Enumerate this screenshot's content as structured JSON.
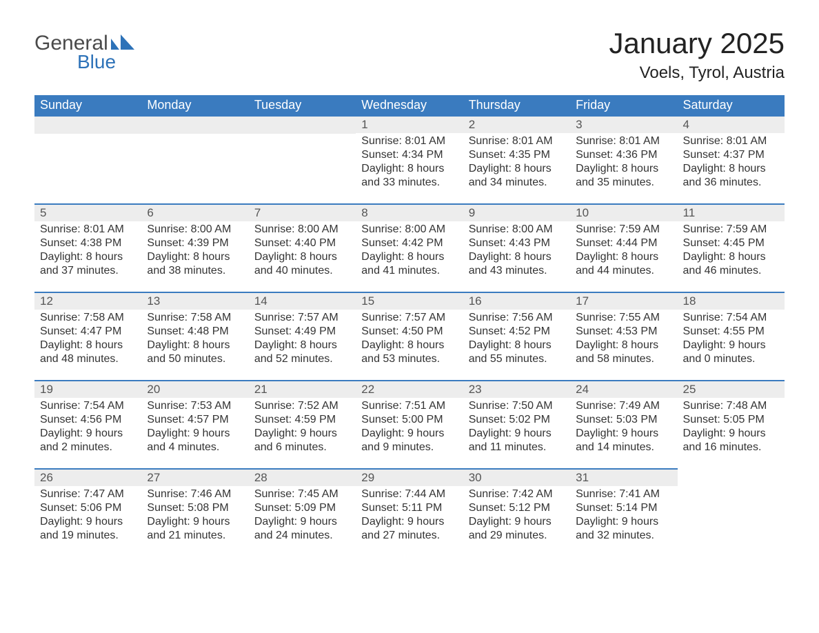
{
  "brand": {
    "text_general": "General",
    "text_blue": "Blue",
    "mark_color": "#2d72b8"
  },
  "title": "January 2025",
  "location": "Voels, Tyrol, Austria",
  "colors": {
    "header_bg": "#3a7bbf",
    "header_text": "#ffffff",
    "day_number_bg": "#ededed",
    "day_number_border": "#3a7bbf",
    "body_text": "#333333",
    "page_bg": "#ffffff"
  },
  "typography": {
    "title_fontsize": 42,
    "location_fontsize": 24,
    "header_fontsize": 18,
    "daynum_fontsize": 17,
    "body_fontsize": 16
  },
  "day_headers": [
    "Sunday",
    "Monday",
    "Tuesday",
    "Wednesday",
    "Thursday",
    "Friday",
    "Saturday"
  ],
  "weeks": [
    [
      null,
      null,
      null,
      {
        "n": "1",
        "sunrise": "Sunrise: 8:01 AM",
        "sunset": "Sunset: 4:34 PM",
        "daylight": "Daylight: 8 hours and 33 minutes."
      },
      {
        "n": "2",
        "sunrise": "Sunrise: 8:01 AM",
        "sunset": "Sunset: 4:35 PM",
        "daylight": "Daylight: 8 hours and 34 minutes."
      },
      {
        "n": "3",
        "sunrise": "Sunrise: 8:01 AM",
        "sunset": "Sunset: 4:36 PM",
        "daylight": "Daylight: 8 hours and 35 minutes."
      },
      {
        "n": "4",
        "sunrise": "Sunrise: 8:01 AM",
        "sunset": "Sunset: 4:37 PM",
        "daylight": "Daylight: 8 hours and 36 minutes."
      }
    ],
    [
      {
        "n": "5",
        "sunrise": "Sunrise: 8:01 AM",
        "sunset": "Sunset: 4:38 PM",
        "daylight": "Daylight: 8 hours and 37 minutes."
      },
      {
        "n": "6",
        "sunrise": "Sunrise: 8:00 AM",
        "sunset": "Sunset: 4:39 PM",
        "daylight": "Daylight: 8 hours and 38 minutes."
      },
      {
        "n": "7",
        "sunrise": "Sunrise: 8:00 AM",
        "sunset": "Sunset: 4:40 PM",
        "daylight": "Daylight: 8 hours and 40 minutes."
      },
      {
        "n": "8",
        "sunrise": "Sunrise: 8:00 AM",
        "sunset": "Sunset: 4:42 PM",
        "daylight": "Daylight: 8 hours and 41 minutes."
      },
      {
        "n": "9",
        "sunrise": "Sunrise: 8:00 AM",
        "sunset": "Sunset: 4:43 PM",
        "daylight": "Daylight: 8 hours and 43 minutes."
      },
      {
        "n": "10",
        "sunrise": "Sunrise: 7:59 AM",
        "sunset": "Sunset: 4:44 PM",
        "daylight": "Daylight: 8 hours and 44 minutes."
      },
      {
        "n": "11",
        "sunrise": "Sunrise: 7:59 AM",
        "sunset": "Sunset: 4:45 PM",
        "daylight": "Daylight: 8 hours and 46 minutes."
      }
    ],
    [
      {
        "n": "12",
        "sunrise": "Sunrise: 7:58 AM",
        "sunset": "Sunset: 4:47 PM",
        "daylight": "Daylight: 8 hours and 48 minutes."
      },
      {
        "n": "13",
        "sunrise": "Sunrise: 7:58 AM",
        "sunset": "Sunset: 4:48 PM",
        "daylight": "Daylight: 8 hours and 50 minutes."
      },
      {
        "n": "14",
        "sunrise": "Sunrise: 7:57 AM",
        "sunset": "Sunset: 4:49 PM",
        "daylight": "Daylight: 8 hours and 52 minutes."
      },
      {
        "n": "15",
        "sunrise": "Sunrise: 7:57 AM",
        "sunset": "Sunset: 4:50 PM",
        "daylight": "Daylight: 8 hours and 53 minutes."
      },
      {
        "n": "16",
        "sunrise": "Sunrise: 7:56 AM",
        "sunset": "Sunset: 4:52 PM",
        "daylight": "Daylight: 8 hours and 55 minutes."
      },
      {
        "n": "17",
        "sunrise": "Sunrise: 7:55 AM",
        "sunset": "Sunset: 4:53 PM",
        "daylight": "Daylight: 8 hours and 58 minutes."
      },
      {
        "n": "18",
        "sunrise": "Sunrise: 7:54 AM",
        "sunset": "Sunset: 4:55 PM",
        "daylight": "Daylight: 9 hours and 0 minutes."
      }
    ],
    [
      {
        "n": "19",
        "sunrise": "Sunrise: 7:54 AM",
        "sunset": "Sunset: 4:56 PM",
        "daylight": "Daylight: 9 hours and 2 minutes."
      },
      {
        "n": "20",
        "sunrise": "Sunrise: 7:53 AM",
        "sunset": "Sunset: 4:57 PM",
        "daylight": "Daylight: 9 hours and 4 minutes."
      },
      {
        "n": "21",
        "sunrise": "Sunrise: 7:52 AM",
        "sunset": "Sunset: 4:59 PM",
        "daylight": "Daylight: 9 hours and 6 minutes."
      },
      {
        "n": "22",
        "sunrise": "Sunrise: 7:51 AM",
        "sunset": "Sunset: 5:00 PM",
        "daylight": "Daylight: 9 hours and 9 minutes."
      },
      {
        "n": "23",
        "sunrise": "Sunrise: 7:50 AM",
        "sunset": "Sunset: 5:02 PM",
        "daylight": "Daylight: 9 hours and 11 minutes."
      },
      {
        "n": "24",
        "sunrise": "Sunrise: 7:49 AM",
        "sunset": "Sunset: 5:03 PM",
        "daylight": "Daylight: 9 hours and 14 minutes."
      },
      {
        "n": "25",
        "sunrise": "Sunrise: 7:48 AM",
        "sunset": "Sunset: 5:05 PM",
        "daylight": "Daylight: 9 hours and 16 minutes."
      }
    ],
    [
      {
        "n": "26",
        "sunrise": "Sunrise: 7:47 AM",
        "sunset": "Sunset: 5:06 PM",
        "daylight": "Daylight: 9 hours and 19 minutes."
      },
      {
        "n": "27",
        "sunrise": "Sunrise: 7:46 AM",
        "sunset": "Sunset: 5:08 PM",
        "daylight": "Daylight: 9 hours and 21 minutes."
      },
      {
        "n": "28",
        "sunrise": "Sunrise: 7:45 AM",
        "sunset": "Sunset: 5:09 PM",
        "daylight": "Daylight: 9 hours and 24 minutes."
      },
      {
        "n": "29",
        "sunrise": "Sunrise: 7:44 AM",
        "sunset": "Sunset: 5:11 PM",
        "daylight": "Daylight: 9 hours and 27 minutes."
      },
      {
        "n": "30",
        "sunrise": "Sunrise: 7:42 AM",
        "sunset": "Sunset: 5:12 PM",
        "daylight": "Daylight: 9 hours and 29 minutes."
      },
      {
        "n": "31",
        "sunrise": "Sunrise: 7:41 AM",
        "sunset": "Sunset: 5:14 PM",
        "daylight": "Daylight: 9 hours and 32 minutes."
      },
      null
    ]
  ]
}
